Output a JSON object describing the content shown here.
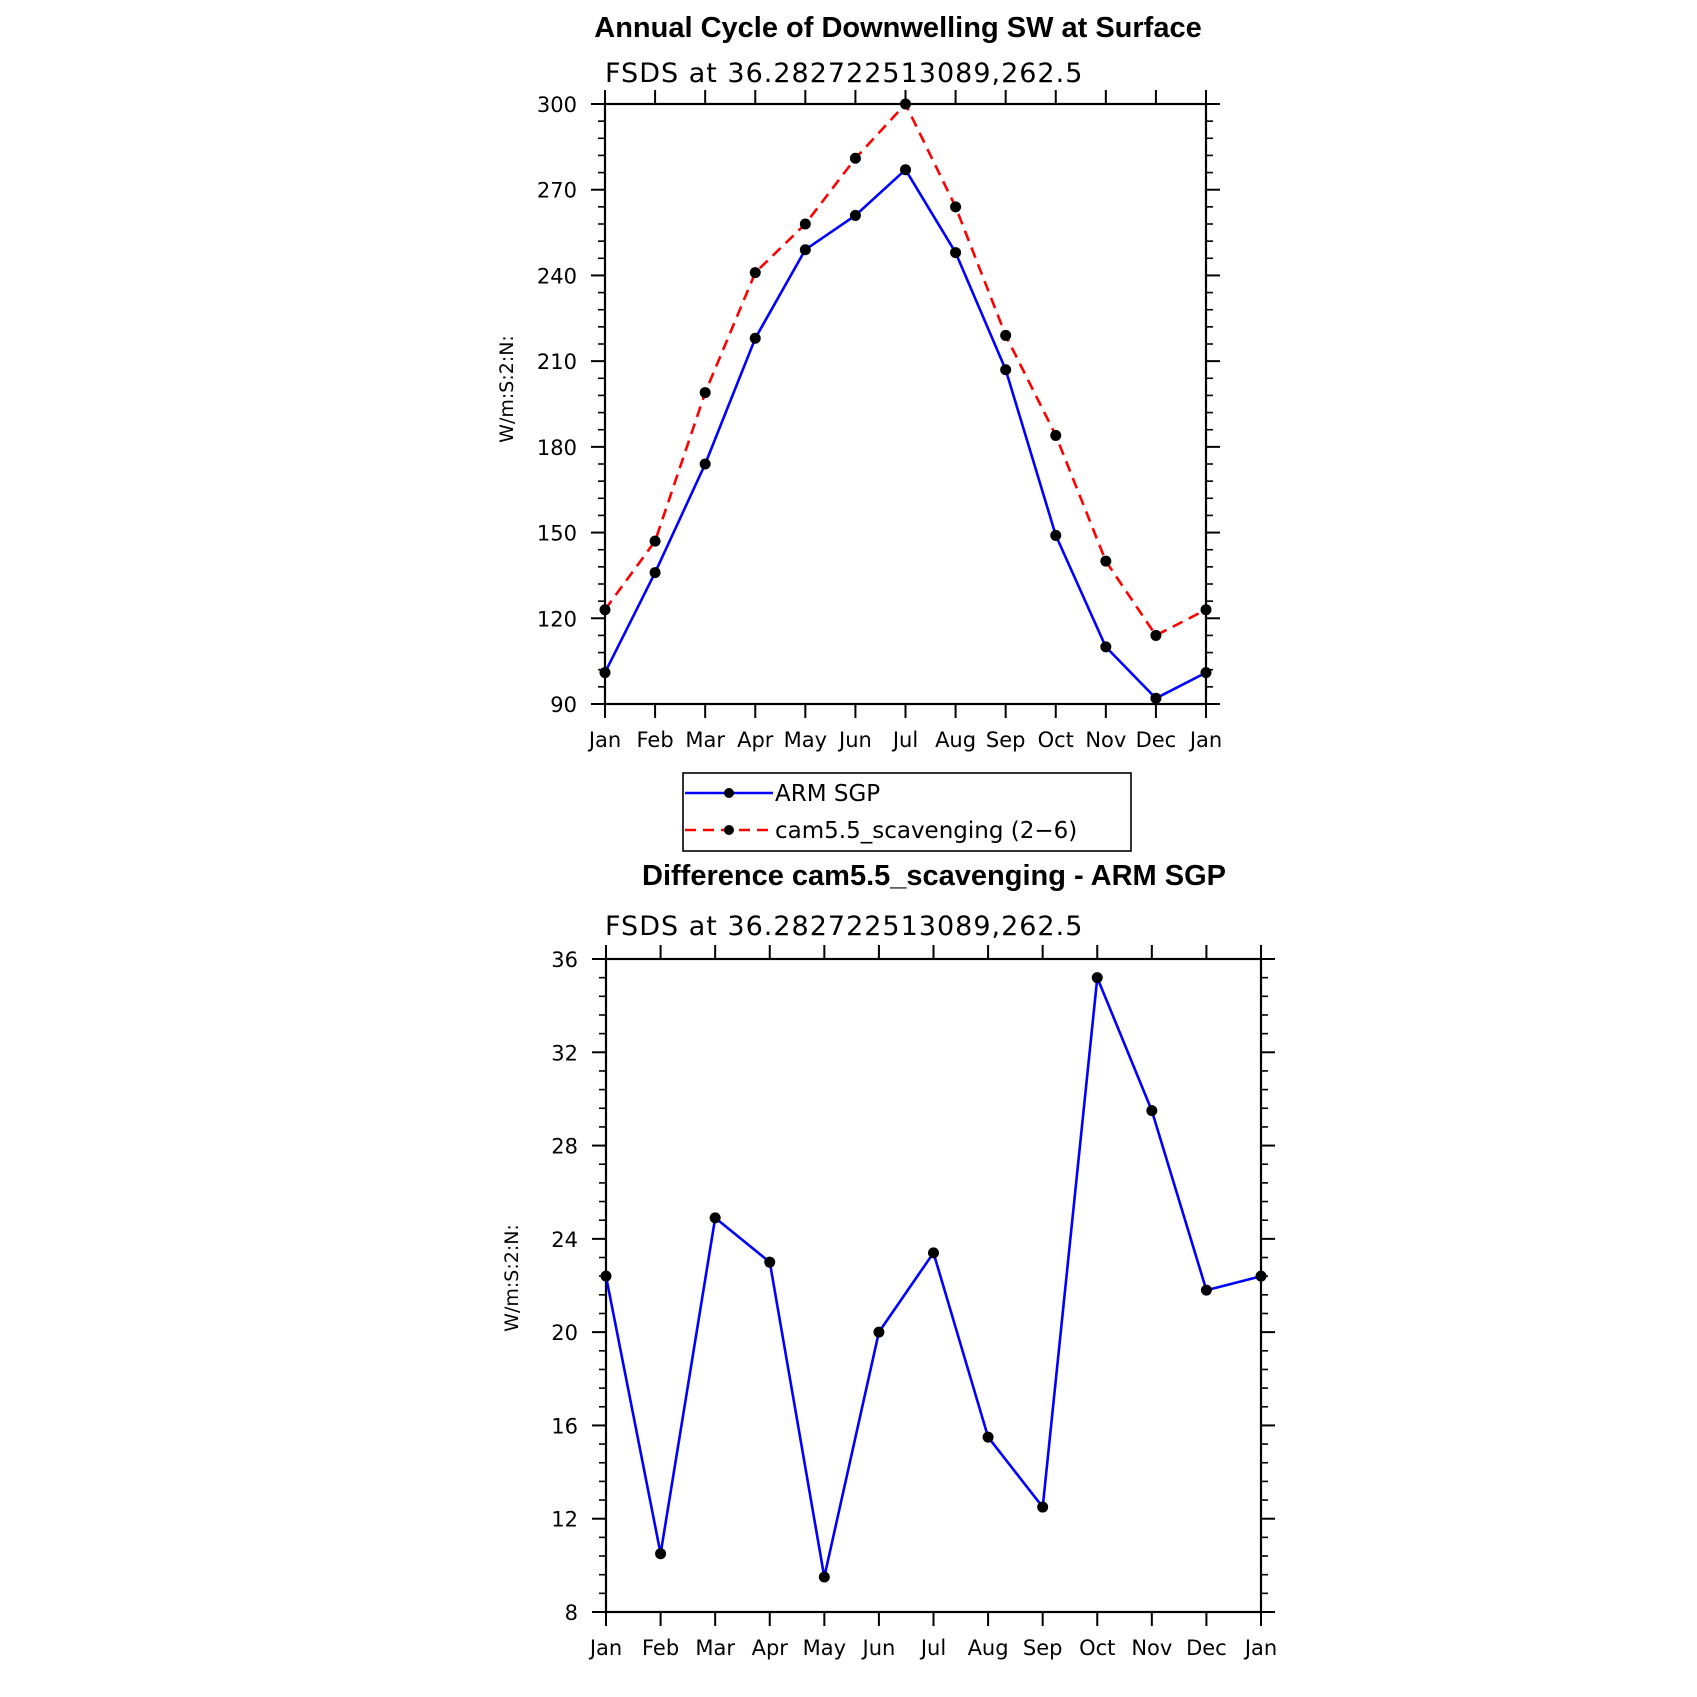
{
  "chart_data": [
    {
      "type": "line",
      "title": "Annual Cycle of Downwelling SW at Surface",
      "subtitle": "FSDS at 36.282722513089,262.5",
      "ylabel": "W/m:S:2:N:",
      "xlabel": "",
      "categories": [
        "Jan",
        "Feb",
        "Mar",
        "Apr",
        "May",
        "Jun",
        "Jul",
        "Aug",
        "Sep",
        "Oct",
        "Nov",
        "Dec",
        "Jan"
      ],
      "ylim": [
        90,
        300
      ],
      "yticks": [
        90,
        120,
        150,
        180,
        210,
        240,
        270,
        300
      ],
      "series": [
        {
          "name": "ARM SGP",
          "color": "#0000ff",
          "dash": "solid",
          "values": [
            101,
            136,
            174,
            218,
            249,
            261,
            277,
            248,
            207,
            149,
            110,
            92,
            101
          ]
        },
        {
          "name": "cam5.5_scavenging (2−6)",
          "color": "#ff0000",
          "dash": "dashed",
          "values": [
            123,
            147,
            199,
            241,
            258,
            281,
            300,
            264,
            219,
            184,
            140,
            114,
            123
          ]
        }
      ],
      "legend": "below"
    },
    {
      "type": "line",
      "title": "Difference cam5.5_scavenging - ARM SGP",
      "subtitle": "FSDS at 36.282722513089,262.5",
      "ylabel": "W/m:S:2:N:",
      "xlabel": "",
      "categories": [
        "Jan",
        "Feb",
        "Mar",
        "Apr",
        "May",
        "Jun",
        "Jul",
        "Aug",
        "Sep",
        "Oct",
        "Nov",
        "Dec",
        "Jan"
      ],
      "ylim": [
        8,
        36
      ],
      "yticks": [
        8,
        12,
        16,
        20,
        24,
        28,
        32,
        36
      ],
      "series": [
        {
          "color": "#0000ff",
          "dash": "solid",
          "values": [
            22.4,
            10.5,
            24.9,
            23.0,
            9.5,
            20.0,
            23.4,
            15.5,
            12.5,
            35.2,
            29.5,
            21.8,
            22.4
          ]
        }
      ]
    }
  ]
}
